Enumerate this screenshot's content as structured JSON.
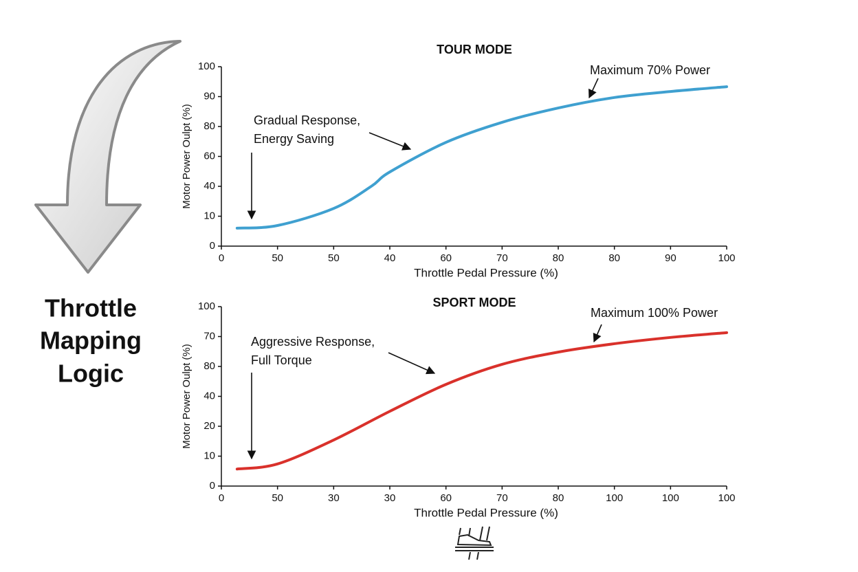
{
  "heading": [
    "Throttle",
    "Mapping",
    "Logic"
  ],
  "chart_data": [
    {
      "type": "line",
      "title": "TOUR MODE",
      "x_label": "Throttle Pedal Pressure (%)",
      "y_label": "Motor Power Oulpt (%)",
      "xlim": [
        0,
        9
      ],
      "xticks": [
        0,
        {
          "value": 1,
          "label": "50"
        },
        {
          "value": 2,
          "label": "50"
        },
        {
          "value": 3,
          "label": "40"
        },
        {
          "value": 4,
          "label": "60"
        },
        {
          "value": 5,
          "label": "70"
        },
        {
          "value": 6,
          "label": "80"
        },
        {
          "value": 7,
          "label": "80"
        },
        {
          "value": 8,
          "label": "90"
        },
        {
          "value": 9,
          "label": "100"
        }
      ],
      "ylim": [
        0,
        6
      ],
      "yticks": [
        0,
        {
          "value": 1,
          "label": "10"
        },
        {
          "value": 2,
          "label": "40"
        },
        {
          "value": 3,
          "label": "60"
        },
        {
          "value": 4,
          "label": "80"
        },
        {
          "value": 5,
          "label": "90"
        },
        {
          "value": 6,
          "label": "100"
        }
      ],
      "series": [
        {
          "name": "Tour",
          "color": "#3fa0d0",
          "x": [
            0.28,
            1,
            2,
            2.67,
            3,
            4,
            5,
            6,
            7,
            8,
            9
          ],
          "values": [
            0.6,
            0.69,
            1.26,
            2.0,
            2.48,
            3.47,
            4.14,
            4.62,
            4.97,
            5.17,
            5.33
          ]
        }
      ],
      "annotations": [
        {
          "text": [
            "Gradual Response,",
            "Energy Saving"
          ]
        },
        {
          "text": [
            "Maximum 70% Power"
          ]
        }
      ]
    },
    {
      "type": "line",
      "title": "SPORT MODE",
      "x_label": "Throttle Pedal Pressure (%)",
      "y_label": "Motor Power Oulpt (%)",
      "xlim": [
        0,
        9
      ],
      "xticks": [
        0,
        {
          "value": 1,
          "label": "50"
        },
        {
          "value": 2,
          "label": "30"
        },
        {
          "value": 3,
          "label": "30"
        },
        {
          "value": 4,
          "label": "60"
        },
        {
          "value": 5,
          "label": "70"
        },
        {
          "value": 6,
          "label": "80"
        },
        {
          "value": 7,
          "label": "100"
        },
        {
          "value": 8,
          "label": "100"
        },
        {
          "value": 9,
          "label": "100"
        }
      ],
      "ylim": [
        0,
        6
      ],
      "yticks": [
        0,
        {
          "value": 1,
          "label": "10"
        },
        {
          "value": 2,
          "label": "20"
        },
        {
          "value": 3,
          "label": "40"
        },
        {
          "value": 4,
          "label": "80"
        },
        {
          "value": 5,
          "label": "70"
        },
        {
          "value": 6,
          "label": "100"
        }
      ],
      "series": [
        {
          "name": "Sport",
          "color": "#d9312b",
          "x": [
            0.28,
            1,
            2,
            3,
            4,
            5,
            6,
            7,
            8,
            9
          ],
          "values": [
            0.57,
            0.74,
            1.54,
            2.5,
            3.4,
            4.07,
            4.48,
            4.76,
            4.97,
            5.13
          ]
        }
      ],
      "annotations": [
        {
          "text": [
            "Aggressive Response,",
            "Full Torque"
          ]
        },
        {
          "text": [
            "Maximum 100% Power"
          ]
        }
      ]
    }
  ]
}
